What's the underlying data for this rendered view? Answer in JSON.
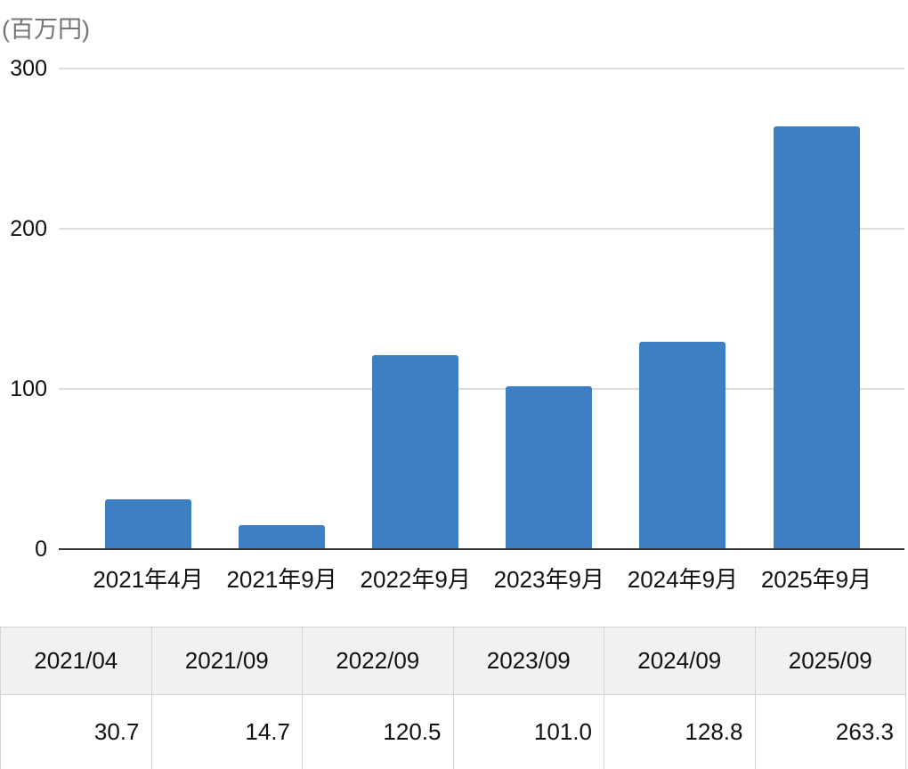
{
  "chart_data": {
    "type": "bar",
    "categories": [
      "2021年4月",
      "2021年9月",
      "2022年9月",
      "2023年9月",
      "2024年9月",
      "2025年9月"
    ],
    "values": [
      30.7,
      14.7,
      120.5,
      101.0,
      128.8,
      263.3
    ],
    "title": "",
    "xlabel": "",
    "ylabel": "(百万円)",
    "ylim": [
      0,
      300
    ],
    "yticks": [
      0,
      100,
      200,
      300
    ],
    "grid": true,
    "legend": false,
    "bar_color": "#3e7ec3",
    "grid_color": "#dcdcdc",
    "axis_color": "#333333",
    "unit_text_color": "#757575"
  },
  "table": {
    "headers": [
      "2021/04",
      "2021/09",
      "2022/09",
      "2023/09",
      "2024/09",
      "2025/09"
    ],
    "values": [
      "30.7",
      "14.7",
      "120.5",
      "101.0",
      "128.8",
      "263.3"
    ],
    "header_bg": "#f1f1f1",
    "border_color": "#d4d4d4"
  }
}
